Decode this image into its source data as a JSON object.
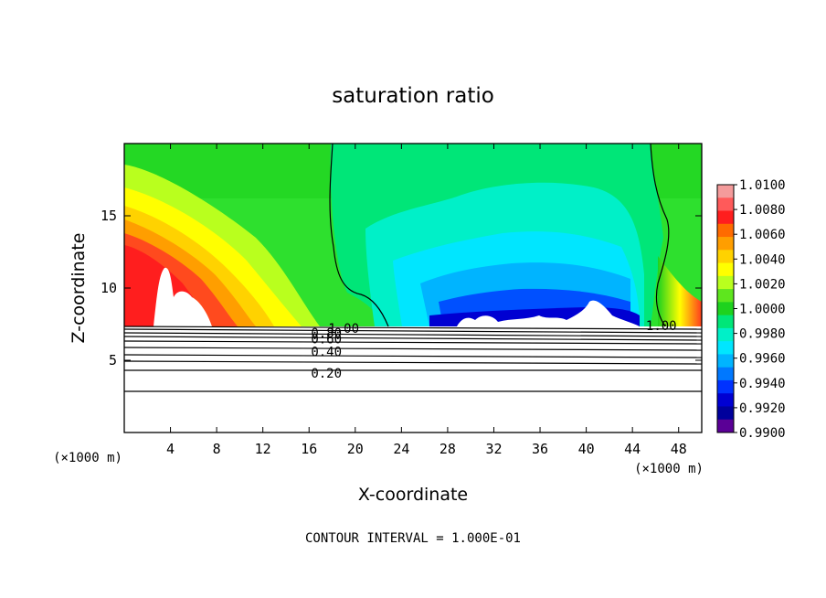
{
  "chart_data": {
    "type": "heatmap",
    "title": "saturation ratio",
    "xlabel": "X-coordinate",
    "ylabel": "Z-coordinate",
    "x_unit_left": "(×1000 m)",
    "x_unit_right": "(×1000 m)",
    "xlim": [
      0,
      50
    ],
    "ylim": [
      0,
      20
    ],
    "x_ticks": [
      4,
      8,
      12,
      16,
      20,
      24,
      28,
      32,
      36,
      40,
      44,
      48
    ],
    "y_ticks": [
      5,
      10,
      15
    ],
    "colorbar": {
      "min": 0.99,
      "max": 1.01,
      "labels": [
        "1.0100",
        "1.0080",
        "1.0060",
        "1.0040",
        "1.0020",
        "1.0000",
        "0.9980",
        "0.9960",
        "0.9940",
        "0.9920",
        "0.9900"
      ],
      "colors": [
        "#f49b9b",
        "#ff5a5a",
        "#ff1e1e",
        "#ff6a00",
        "#ff9e00",
        "#ffd200",
        "#ffff00",
        "#b9ff1e",
        "#5ee61e",
        "#1ed21e",
        "#00e678",
        "#00f0c8",
        "#00e6ff",
        "#00b4ff",
        "#0078ff",
        "#0032ff",
        "#0000d2",
        "#00009c",
        "#5a0096"
      ]
    },
    "contour_labels": [
      {
        "label": "1.00",
        "x": 19.0,
        "z": 7.2
      },
      {
        "label": "1.00",
        "x": 46.5,
        "z": 7.4
      },
      {
        "label": "0.80",
        "x": 17.5,
        "z": 6.9
      },
      {
        "label": "0.60",
        "x": 17.5,
        "z": 6.5
      },
      {
        "label": "0.40",
        "x": 17.5,
        "z": 5.6
      },
      {
        "label": "0.20",
        "x": 17.5,
        "z": 4.1
      }
    ],
    "field_samples": [
      {
        "x": 3,
        "z": 12,
        "value": 1.008
      },
      {
        "x": 8,
        "z": 11,
        "value": 1.006
      },
      {
        "x": 10,
        "z": 15,
        "value": 1.002
      },
      {
        "x": 20,
        "z": 15,
        "value": 1.0002
      },
      {
        "x": 30,
        "z": 14,
        "value": 0.998
      },
      {
        "x": 33,
        "z": 9,
        "value": 0.993
      },
      {
        "x": 40,
        "z": 9,
        "value": 0.992
      },
      {
        "x": 48,
        "z": 10,
        "value": 1.003
      }
    ],
    "grid": false,
    "legend": "right colorbar"
  },
  "footer": "CONTOUR INTERVAL = 1.000E-01"
}
